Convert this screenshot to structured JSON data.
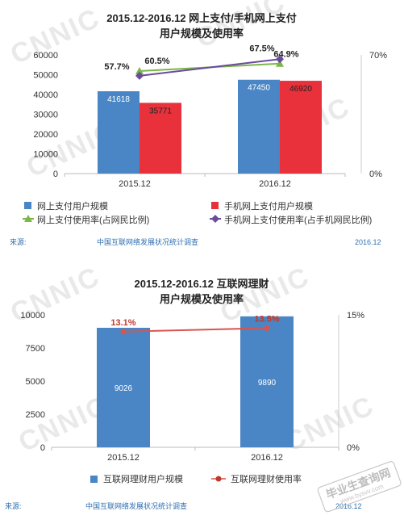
{
  "sources": {
    "label": "来源:",
    "text": "中国互联网络发展状况统计调查",
    "date": "2016.12"
  },
  "watermark": "CNNIC",
  "stamp": {
    "text": "毕业生查询网",
    "sub": "www.bysvv.com"
  },
  "chart_data": [
    {
      "type": "bar",
      "title": "2015.12-2016.12 网上支付/手机网上支付",
      "subtitle": "用户规模及使用率",
      "categories": [
        "2015.12",
        "2016.12"
      ],
      "ylim": [
        0,
        60000
      ],
      "yticks": [
        0,
        10000,
        20000,
        30000,
        40000,
        50000,
        60000
      ],
      "y2lim": [
        0,
        70
      ],
      "y2ticks": [
        "0%",
        "70%"
      ],
      "grid": false,
      "legend_position": "bottom",
      "series": [
        {
          "name": "网上支付用户规模",
          "type": "bar",
          "color": "#4a86c5",
          "values": [
            41618,
            47450
          ],
          "labels": [
            "41618",
            "47450"
          ]
        },
        {
          "name": "手机网上支付用户规模",
          "type": "bar",
          "color": "#e8313b",
          "values": [
            35771,
            46920
          ],
          "labels": [
            "35771",
            "46920"
          ]
        },
        {
          "name": "网上支付使用率(占网民比例)",
          "type": "line",
          "axis": "right",
          "color": "#7ab648",
          "values": [
            60.5,
            64.9
          ],
          "labels": [
            "60.5%",
            "64.9%"
          ]
        },
        {
          "name": "手机网上支付使用率(占手机网民比例)",
          "type": "line",
          "axis": "right",
          "color": "#6a4b9c",
          "values": [
            57.7,
            67.5
          ],
          "labels": [
            "57.7%",
            "67.5%"
          ]
        }
      ]
    },
    {
      "type": "bar",
      "title": "2015.12-2016.12 互联网理财",
      "subtitle": "用户规模及使用率",
      "categories": [
        "2015.12",
        "2016.12"
      ],
      "ylim": [
        0,
        10000
      ],
      "yticks": [
        0,
        2500,
        5000,
        7500,
        10000
      ],
      "y2lim": [
        0,
        15
      ],
      "y2ticks": [
        "0%",
        "15%"
      ],
      "grid": false,
      "legend_position": "bottom",
      "series": [
        {
          "name": "互联网理财用户规模",
          "type": "bar",
          "color": "#4a86c5",
          "values": [
            9026,
            9890
          ],
          "labels": [
            "9026",
            "9890"
          ]
        },
        {
          "name": "互联网理财使用率",
          "type": "line",
          "axis": "right",
          "color": "#d9534f",
          "values": [
            13.1,
            13.5
          ],
          "labels": [
            "13.1%",
            "13.5%"
          ]
        }
      ]
    }
  ]
}
